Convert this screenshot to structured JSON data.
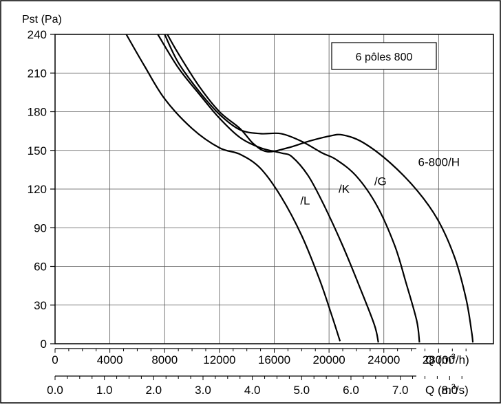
{
  "chart_data": {
    "type": "line",
    "title": "",
    "legend_box": "6 pôles 800",
    "ylabel": "Pst (Pa)",
    "ylim": [
      0,
      240
    ],
    "y_ticks": [
      0,
      30,
      60,
      90,
      120,
      150,
      180,
      210,
      240
    ],
    "y_tick_labels": [
      "0",
      "30",
      "60",
      "90",
      "120",
      "150",
      "180",
      "210",
      "240"
    ],
    "x_axis_primary": {
      "label": "Q (m³/h)",
      "label_main": "Q (m",
      "label_sup": "3",
      "label_end": "/h)",
      "range": [
        0,
        32000
      ],
      "ticks": [
        0,
        4000,
        8000,
        12000,
        16000,
        20000,
        24000,
        28000
      ],
      "tick_labels": [
        "0",
        "4000",
        "8000",
        "12000",
        "16000",
        "20000",
        "24000",
        "28000"
      ],
      "minor_step": 1000
    },
    "x_axis_secondary": {
      "label": "Q (m³/s)",
      "label_main": "Q (m",
      "label_sup": "3",
      "label_end": "/s)",
      "ticks": [
        0,
        1,
        2,
        3,
        4,
        5,
        6,
        7,
        8
      ],
      "tick_labels": [
        "0.0",
        "1.0",
        "2.0",
        "3.0",
        "4.0",
        "5.0",
        "6.0",
        "7.0",
        "8.0"
      ]
    },
    "grid": true,
    "series": [
      {
        "name": "/L",
        "color": "#000000",
        "points": [
          [
            5200,
            240
          ],
          [
            6500,
            216
          ],
          [
            8000,
            190
          ],
          [
            10000,
            167
          ],
          [
            12000,
            152
          ],
          [
            13500,
            147
          ],
          [
            15000,
            136
          ],
          [
            16500,
            114
          ],
          [
            18000,
            84
          ],
          [
            19300,
            50
          ],
          [
            20200,
            22
          ],
          [
            20800,
            2
          ]
        ]
      },
      {
        "name": "/K",
        "color": "#000000",
        "points": [
          [
            7500,
            240
          ],
          [
            9000,
            214
          ],
          [
            10500,
            194
          ],
          [
            12000,
            175
          ],
          [
            13500,
            160
          ],
          [
            15000,
            152
          ],
          [
            16500,
            148
          ],
          [
            17300,
            145
          ],
          [
            18500,
            130
          ],
          [
            19700,
            106
          ],
          [
            21000,
            76
          ],
          [
            22200,
            45
          ],
          [
            23300,
            15
          ],
          [
            23600,
            1
          ]
        ]
      },
      {
        "name": "/G",
        "color": "#000000",
        "points": [
          [
            8000,
            240
          ],
          [
            9000,
            218
          ],
          [
            10500,
            196
          ],
          [
            12000,
            178
          ],
          [
            13500,
            166
          ],
          [
            15000,
            163
          ],
          [
            16500,
            163
          ],
          [
            18000,
            157
          ],
          [
            19500,
            148
          ],
          [
            20500,
            143
          ],
          [
            22000,
            130
          ],
          [
            23500,
            107
          ],
          [
            24800,
            76
          ],
          [
            25600,
            48
          ],
          [
            26400,
            18
          ],
          [
            26600,
            1
          ]
        ]
      },
      {
        "name": "6-800/H",
        "color": "#000000",
        "points": [
          [
            8200,
            240
          ],
          [
            9000,
            225
          ],
          [
            10500,
            200
          ],
          [
            12000,
            180
          ],
          [
            13500,
            167
          ],
          [
            14500,
            155
          ],
          [
            15500,
            149
          ],
          [
            17000,
            152
          ],
          [
            18500,
            157
          ],
          [
            20000,
            161
          ],
          [
            21000,
            162
          ],
          [
            22500,
            156
          ],
          [
            24500,
            140
          ],
          [
            26500,
            118
          ],
          [
            28000,
            95
          ],
          [
            29200,
            66
          ],
          [
            30000,
            35
          ],
          [
            30400,
            10
          ],
          [
            30500,
            1
          ]
        ]
      }
    ],
    "annotations": [
      {
        "text": "/L",
        "x": 17900,
        "y": 108
      },
      {
        "text": "/K",
        "x": 20700,
        "y": 117
      },
      {
        "text": "/G",
        "x": 23300,
        "y": 123
      },
      {
        "text": "6-800/H",
        "x": 26500,
        "y": 138
      }
    ]
  }
}
